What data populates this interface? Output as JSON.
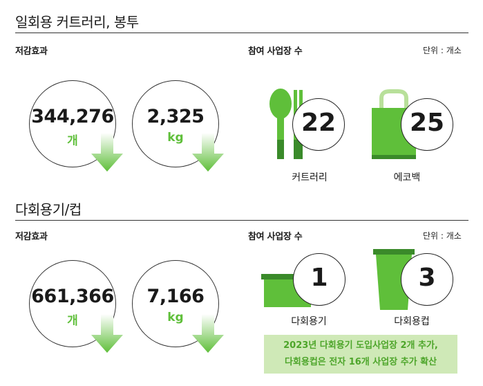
{
  "section1": {
    "title": "일회용 커트러리, 봉투",
    "reduction": {
      "label": "저감효과",
      "items": [
        {
          "value": "344,276",
          "unit": "개"
        },
        {
          "value": "2,325",
          "unit": "kg"
        }
      ]
    },
    "participants": {
      "label": "참여 사업장 수",
      "unit_note": "단위 : 개소",
      "items": [
        {
          "label": "커트러리",
          "count": "22",
          "icon": "cutlery-icon"
        },
        {
          "label": "에코백",
          "count": "25",
          "icon": "eco-bag-icon"
        }
      ]
    }
  },
  "section2": {
    "title": "다회용기/컵",
    "reduction": {
      "label": "저감효과",
      "items": [
        {
          "value": "661,366",
          "unit": "개"
        },
        {
          "value": "7,166",
          "unit": "kg"
        }
      ]
    },
    "participants": {
      "label": "참여 사업장 수",
      "unit_note": "단위 : 개소",
      "items": [
        {
          "label": "다회용기",
          "count": "1",
          "icon": "container-icon"
        },
        {
          "label": "다회용컵",
          "count": "3",
          "icon": "cup-icon"
        }
      ]
    },
    "note_lines": [
      "2023년 다회용기 도입사업장 2개 추가,",
      "다회용컵은 전자 16개 사업장 추가 확산"
    ]
  },
  "colors": {
    "accent": "#5fbf3a",
    "accent_dark": "#3a8a2a",
    "note_bg": "#cfe9b7"
  }
}
